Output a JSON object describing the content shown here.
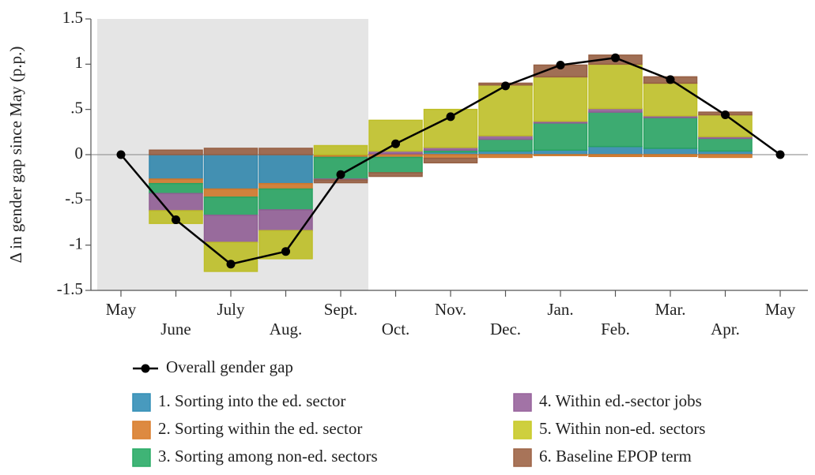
{
  "chart_data": {
    "type": "bar",
    "stacked": true,
    "grid": false,
    "y_label": "Δ in gender gap since May (p.p.)",
    "categories": [
      "May",
      "June",
      "July",
      "Aug.",
      "Sept.",
      "Oct.",
      "Nov.",
      "Dec.",
      "Jan.",
      "Feb.",
      "Mar.",
      "Apr.",
      "May"
    ],
    "ylim": [
      -1.5,
      1.5
    ],
    "yticks": [
      1.5,
      1,
      {
        "value": 0.5,
        "label": ".5"
      },
      0,
      {
        "value": -0.5,
        "label": "-.5"
      },
      -1,
      -1.5
    ],
    "series": [
      {
        "name": "1. Sorting into the ed. sector",
        "type": "bar",
        "color": "#3a9fcb",
        "values": [
          null,
          -0.27,
          -0.38,
          -0.32,
          -0.01,
          0.01,
          0.03,
          0.04,
          0.05,
          0.09,
          0.07,
          0.04,
          null
        ]
      },
      {
        "name": "2. Sorting within the ed. sector",
        "type": "bar",
        "color": "#f28c32",
        "values": [
          null,
          -0.05,
          -0.09,
          -0.06,
          -0.02,
          -0.03,
          -0.04,
          -0.03,
          -0.01,
          -0.02,
          -0.02,
          -0.03,
          null
        ]
      },
      {
        "name": "3. Sorting among non-ed. sectors",
        "type": "bar",
        "color": "#2fbf72",
        "values": [
          null,
          -0.11,
          -0.2,
          -0.23,
          -0.24,
          -0.17,
          0.02,
          0.13,
          0.3,
          0.38,
          0.34,
          0.14,
          null
        ]
      },
      {
        "name": "4. Within ed.-sector jobs",
        "type": "bar",
        "color": "#a96fae",
        "values": [
          null,
          -0.19,
          -0.3,
          -0.23,
          -0.01,
          0.03,
          0.03,
          0.04,
          0.02,
          0.04,
          0.02,
          0.02,
          null
        ]
      },
      {
        "name": "5. Within non-ed. sectors",
        "type": "bar",
        "color": "#dfe02e",
        "values": [
          null,
          -0.14,
          -0.32,
          -0.31,
          0.1,
          0.34,
          0.42,
          0.56,
          0.49,
          0.49,
          0.36,
          0.24,
          null
        ]
      },
      {
        "name": "6. Baseline EPOP term",
        "type": "bar",
        "color": "#b0704f",
        "values": [
          null,
          0.05,
          0.07,
          0.07,
          -0.03,
          -0.04,
          -0.05,
          0.02,
          0.13,
          0.1,
          0.07,
          0.03,
          null
        ]
      },
      {
        "name": "Overall gender gap",
        "type": "line",
        "color": "#000000",
        "values": [
          0,
          -0.72,
          -1.21,
          -1.07,
          -0.22,
          0.12,
          0.42,
          0.76,
          0.99,
          1.07,
          0.83,
          0.44,
          0
        ]
      }
    ]
  }
}
